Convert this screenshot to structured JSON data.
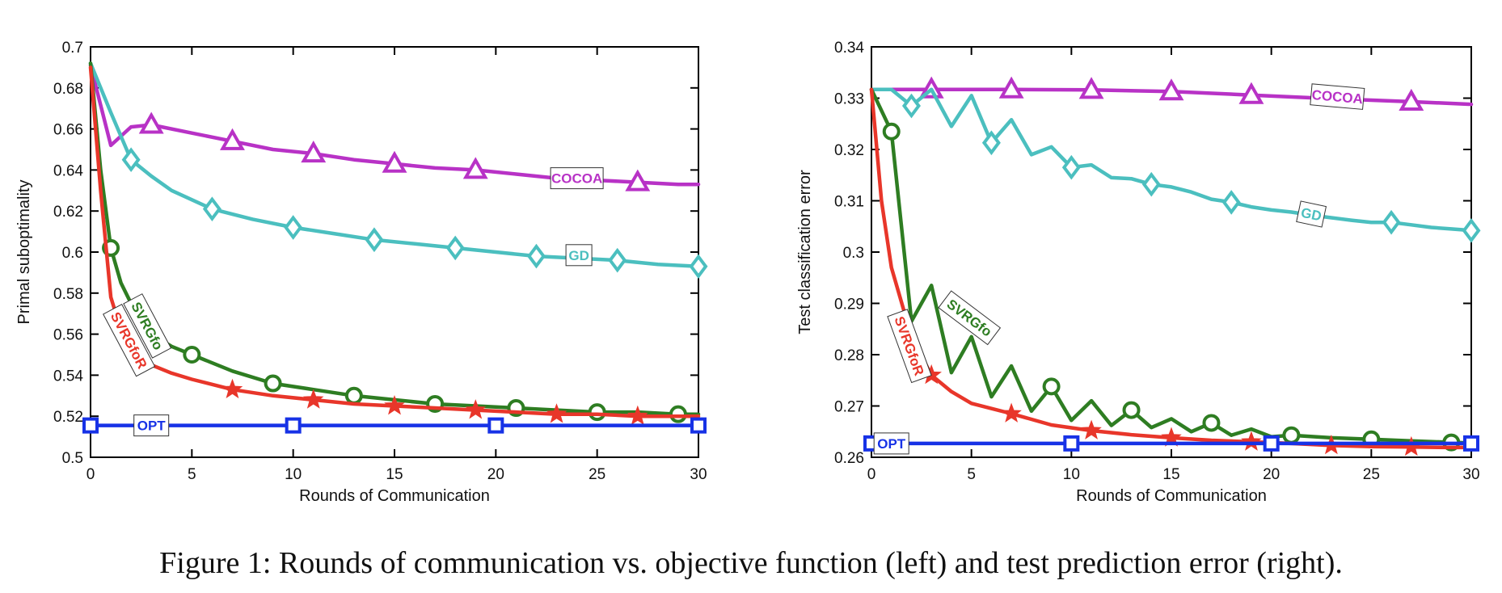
{
  "caption": "Figure 1: Rounds of communication vs. objective function (left) and test prediction error (right).",
  "colors": {
    "COCOA": "#b832c6",
    "GD": "#4bbfbf",
    "SVRGfo": "#2e7d22",
    "SVRGfoR": "#e8362a",
    "OPT": "#1732e6"
  },
  "chart_data": [
    {
      "type": "line",
      "xlabel": "Rounds of Communication",
      "ylabel": "Primal suboptimality",
      "xlim": [
        0,
        30
      ],
      "ylim": [
        0.5,
        0.7
      ],
      "xticks": [
        "0",
        "5",
        "10",
        "15",
        "20",
        "25",
        "30"
      ],
      "yticks": [
        "0.5",
        "0.52",
        "0.54",
        "0.56",
        "0.58",
        "0.6",
        "0.62",
        "0.64",
        "0.66",
        "0.68",
        "0.7"
      ],
      "grid": false,
      "series": [
        {
          "name": "COCOA",
          "marker": "triangle",
          "x": [
            0,
            1,
            2,
            3,
            5,
            7,
            9,
            11,
            13,
            15,
            17,
            19,
            21,
            23,
            25,
            27,
            29,
            30
          ],
          "y": [
            0.691,
            0.652,
            0.661,
            0.662,
            0.658,
            0.654,
            0.65,
            0.648,
            0.645,
            0.643,
            0.641,
            0.64,
            0.638,
            0.636,
            0.635,
            0.634,
            0.633,
            0.633
          ],
          "marker_x": [
            3,
            7,
            11,
            15,
            19,
            27
          ]
        },
        {
          "name": "GD",
          "marker": "diamond",
          "x": [
            0,
            1,
            2,
            3,
            4,
            6,
            8,
            10,
            12,
            14,
            16,
            18,
            20,
            22,
            24,
            26,
            28,
            30
          ],
          "y": [
            0.692,
            0.668,
            0.645,
            0.637,
            0.63,
            0.621,
            0.616,
            0.612,
            0.609,
            0.606,
            0.604,
            0.602,
            0.6,
            0.598,
            0.597,
            0.596,
            0.594,
            0.593
          ],
          "marker_x": [
            2,
            6,
            10,
            14,
            18,
            22,
            26,
            30
          ]
        },
        {
          "name": "SVRGfo",
          "marker": "circle",
          "x": [
            0,
            0.5,
            1,
            1.5,
            2,
            3,
            4,
            5,
            7,
            9,
            11,
            13,
            15,
            17,
            19,
            21,
            23,
            25,
            27,
            29,
            30
          ],
          "y": [
            0.692,
            0.64,
            0.602,
            0.585,
            0.575,
            0.56,
            0.554,
            0.55,
            0.542,
            0.536,
            0.533,
            0.53,
            0.528,
            0.526,
            0.525,
            0.524,
            0.523,
            0.522,
            0.522,
            0.521,
            0.521
          ],
          "marker_x": [
            1,
            5,
            9,
            13,
            17,
            21,
            25,
            29
          ]
        },
        {
          "name": "SVRGfoR",
          "marker": "star",
          "x": [
            0,
            0.5,
            1,
            1.5,
            2,
            3,
            4,
            5,
            7,
            9,
            11,
            13,
            15,
            17,
            19,
            21,
            23,
            25,
            27,
            29,
            30
          ],
          "y": [
            0.69,
            0.63,
            0.578,
            0.562,
            0.554,
            0.545,
            0.541,
            0.538,
            0.533,
            0.53,
            0.528,
            0.526,
            0.525,
            0.524,
            0.523,
            0.522,
            0.521,
            0.521,
            0.52,
            0.52,
            0.52
          ],
          "marker_x": [
            7,
            11,
            15,
            19,
            23,
            27
          ]
        },
        {
          "name": "OPT",
          "marker": "square",
          "x": [
            0,
            30
          ],
          "y": [
            0.5155,
            0.5155
          ],
          "marker_x": [
            0,
            10,
            20,
            30
          ]
        }
      ],
      "labels": [
        {
          "text": "COCOA",
          "series": "COCOA",
          "x": 24.0,
          "y": 0.636,
          "rotate": 0
        },
        {
          "text": "GD",
          "series": "GD",
          "x": 24.1,
          "y": 0.5985,
          "rotate": 0
        },
        {
          "text": "SVRGfo",
          "series": "SVRGfo",
          "x": 2.8,
          "y": 0.564,
          "rotate": 62
        },
        {
          "text": "SVRGfoR",
          "series": "SVRGfoR",
          "x": 1.9,
          "y": 0.557,
          "rotate": 62
        },
        {
          "text": "OPT",
          "series": "OPT",
          "x": 3.0,
          "y": 0.5155,
          "rotate": 0
        }
      ]
    },
    {
      "type": "line",
      "xlabel": "Rounds of Communication",
      "ylabel": "Test classification error",
      "xlim": [
        0,
        30
      ],
      "ylim": [
        0.26,
        0.34
      ],
      "xticks": [
        "0",
        "5",
        "10",
        "15",
        "20",
        "25",
        "30"
      ],
      "yticks": [
        "0.26",
        "0.27",
        "0.28",
        "0.29",
        "0.3",
        "0.31",
        "0.32",
        "0.33",
        "0.34"
      ],
      "grid": false,
      "series": [
        {
          "name": "COCOA",
          "marker": "triangle",
          "x": [
            0,
            3,
            7,
            11,
            15,
            19,
            23,
            27,
            30
          ],
          "y": [
            0.3317,
            0.3317,
            0.3317,
            0.3316,
            0.3313,
            0.3306,
            0.3299,
            0.3293,
            0.3288
          ],
          "marker_x": [
            3,
            7,
            11,
            15,
            19,
            27
          ]
        },
        {
          "name": "GD",
          "marker": "diamond",
          "x": [
            0,
            1,
            2,
            3,
            4,
            5,
            6,
            7,
            8,
            9,
            10,
            11,
            12,
            13,
            14,
            15,
            16,
            17,
            18,
            19,
            20,
            21,
            22,
            23,
            24,
            25,
            26,
            27,
            28,
            29,
            30
          ],
          "y": [
            0.3317,
            0.3317,
            0.3285,
            0.3317,
            0.3245,
            0.3305,
            0.3213,
            0.3258,
            0.319,
            0.3205,
            0.3165,
            0.317,
            0.3145,
            0.3143,
            0.3132,
            0.3127,
            0.3117,
            0.3103,
            0.3097,
            0.3088,
            0.3082,
            0.3078,
            0.3072,
            0.3067,
            0.3062,
            0.3058,
            0.3058,
            0.3053,
            0.3048,
            0.3045,
            0.3042
          ],
          "marker_x": [
            2,
            6,
            10,
            14,
            18,
            26,
            30
          ]
        },
        {
          "name": "SVRGfo",
          "marker": "circle",
          "x": [
            0,
            1,
            2,
            3,
            4,
            5,
            6,
            7,
            8,
            9,
            10,
            11,
            12,
            13,
            14,
            15,
            16,
            17,
            18,
            19,
            20,
            21,
            23,
            25,
            27,
            29,
            30
          ],
          "y": [
            0.3317,
            0.3235,
            0.2865,
            0.2935,
            0.2765,
            0.2835,
            0.2718,
            0.2778,
            0.269,
            0.2738,
            0.2672,
            0.271,
            0.2662,
            0.2692,
            0.2658,
            0.2675,
            0.265,
            0.2667,
            0.2643,
            0.2655,
            0.264,
            0.2643,
            0.2638,
            0.2635,
            0.2632,
            0.2629,
            0.2628
          ],
          "marker_x": [
            1,
            9,
            13,
            17,
            21,
            25,
            29
          ]
        },
        {
          "name": "SVRGfoR",
          "marker": "star",
          "x": [
            0,
            0.5,
            1,
            2,
            3,
            4,
            5,
            7,
            9,
            11,
            13,
            15,
            17,
            19,
            21,
            23,
            25,
            27,
            29,
            30
          ],
          "y": [
            0.3317,
            0.31,
            0.297,
            0.2835,
            0.276,
            0.2728,
            0.2705,
            0.2685,
            0.2663,
            0.2652,
            0.2644,
            0.2638,
            0.2633,
            0.263,
            0.2627,
            0.2623,
            0.2621,
            0.262,
            0.2619,
            0.2619
          ],
          "marker_x": [
            3,
            7,
            11,
            15,
            19,
            23,
            27
          ]
        },
        {
          "name": "OPT",
          "marker": "square",
          "x": [
            0,
            30
          ],
          "y": [
            0.2627,
            0.2627
          ],
          "marker_x": [
            0,
            10,
            20,
            30
          ]
        }
      ],
      "labels": [
        {
          "text": "COCOA",
          "series": "COCOA",
          "x": 23.3,
          "y": 0.3303,
          "rotate": 5
        },
        {
          "text": "GD",
          "series": "GD",
          "x": 22.0,
          "y": 0.3074,
          "rotate": 12
        },
        {
          "text": "SVRGfo",
          "series": "SVRGfo",
          "x": 4.9,
          "y": 0.2872,
          "rotate": 37
        },
        {
          "text": "SVRGfoR",
          "series": "SVRGfoR",
          "x": 1.9,
          "y": 0.2817,
          "rotate": 70
        },
        {
          "text": "OPT",
          "series": "OPT",
          "x": 1.0,
          "y": 0.2627,
          "rotate": 0
        }
      ]
    }
  ]
}
